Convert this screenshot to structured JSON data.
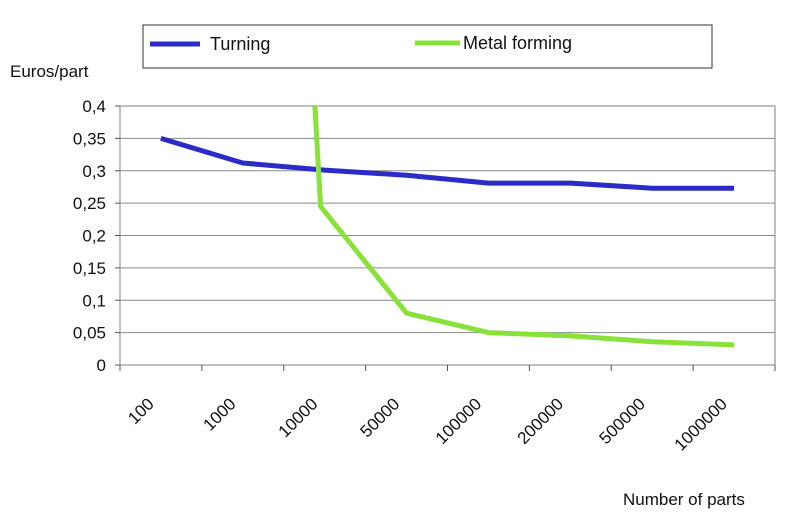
{
  "chart_data": {
    "type": "line",
    "title": "",
    "xlabel": "Number of parts",
    "ylabel": "Euros/part",
    "categories": [
      "100",
      "1000",
      "10000",
      "50000",
      "100000",
      "200000",
      "500000",
      "1000000"
    ],
    "y_ticks": [
      "0",
      "0,05",
      "0,1",
      "0,15",
      "0,2",
      "0,25",
      "0,3",
      "0,35",
      "0,4"
    ],
    "ylim": [
      0,
      0.4
    ],
    "grid": true,
    "legend_position": "top",
    "series": [
      {
        "name": "Turning",
        "color": "#2b2bc8",
        "points": [
          {
            "x": 0.5,
            "y": 0.35
          },
          {
            "x": 1.5,
            "y": 0.312
          },
          {
            "x": 2.5,
            "y": 0.301
          },
          {
            "x": 3.5,
            "y": 0.293
          },
          {
            "x": 4.5,
            "y": 0.281
          },
          {
            "x": 5.5,
            "y": 0.281
          },
          {
            "x": 6.5,
            "y": 0.273
          },
          {
            "x": 7.5,
            "y": 0.273
          }
        ]
      },
      {
        "name": "Metal forming",
        "color": "#88e23a",
        "points": [
          {
            "x": 2.38,
            "y": 0.4
          },
          {
            "x": 2.45,
            "y": 0.245
          },
          {
            "x": 3.5,
            "y": 0.08
          },
          {
            "x": 4.5,
            "y": 0.05
          },
          {
            "x": 5.5,
            "y": 0.045
          },
          {
            "x": 6.5,
            "y": 0.036
          },
          {
            "x": 7.5,
            "y": 0.031
          }
        ]
      }
    ]
  }
}
